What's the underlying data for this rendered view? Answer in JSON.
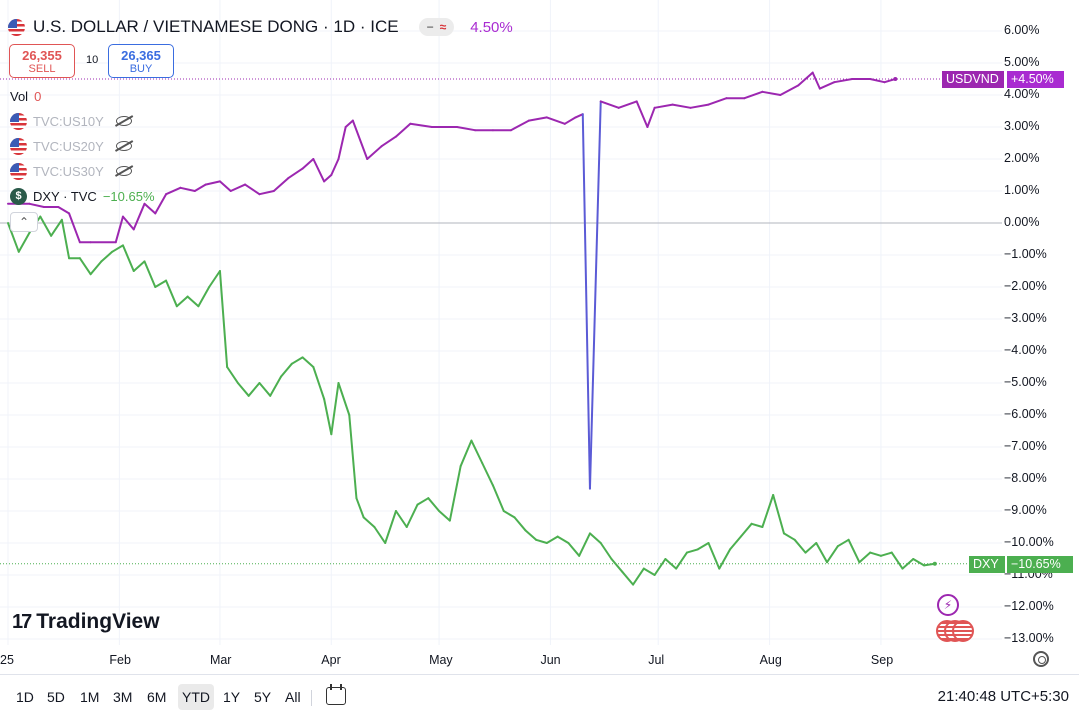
{
  "header": {
    "symbol_title": "U.S. DOLLAR / VIETNAMESE DONG · 1D · ICE",
    "change_pct": "4.50%",
    "icons": [
      "us-flag-icon",
      "toggle-pill-icon"
    ]
  },
  "trade": {
    "sell_price": "26,355",
    "sell_label": "SELL",
    "spread": "10",
    "buy_price": "26,365",
    "buy_label": "BUY"
  },
  "legend": {
    "vol_label": "Vol",
    "vol_value": "0",
    "comparisons": [
      "TVC:US10Y",
      "TVC:US20Y",
      "TVC:US30Y"
    ],
    "dxy_name": "DXY · TVC",
    "dxy_change": "−10.65%",
    "dxy_icon_glyph": "$",
    "collapse_glyph": "⌃"
  },
  "axis_tags": {
    "usdvnd_name": "USDVND",
    "usdvnd_value": "+4.50%",
    "dxy_name": "DXY",
    "dxy_value": "−10.65%"
  },
  "colors": {
    "usdvnd": "#9c27b0",
    "dxy": "#4caf50",
    "spike": "#5b5bd6"
  },
  "branding": {
    "logo_text": "TradingView"
  },
  "bottom_bar": {
    "ranges": [
      "1D",
      "5D",
      "1M",
      "3M",
      "6M",
      "YTD",
      "1Y",
      "5Y",
      "All"
    ],
    "active_range": "YTD",
    "clock": "21:40:48 UTC+5:30"
  },
  "chart_data": {
    "type": "line",
    "y_unit": "percent change",
    "ylim": [
      -13.5,
      6.5
    ],
    "y_ticks": [
      "6.00%",
      "5.00%",
      "4.00%",
      "3.00%",
      "2.00%",
      "1.00%",
      "0.00%",
      "−1.00%",
      "−2.00%",
      "−3.00%",
      "−4.00%",
      "−5.00%",
      "−6.00%",
      "−7.00%",
      "−8.00%",
      "−9.00%",
      "−10.00%",
      "−11.00%",
      "−12.00%",
      "−13.00%"
    ],
    "x_ticks": [
      "25",
      "Feb",
      "Mar",
      "Apr",
      "May",
      "Jun",
      "Jul",
      "Aug",
      "Sep"
    ],
    "x_range_days": [
      0,
      260
    ],
    "x_tick_days": [
      0,
      31,
      59,
      90,
      120,
      151,
      181,
      212,
      243
    ],
    "grid": true,
    "zero_line": true,
    "series": [
      {
        "name": "USDVND",
        "points": [
          [
            0,
            0.6
          ],
          [
            6,
            0.6
          ],
          [
            10,
            0.5
          ],
          [
            14,
            0.5
          ],
          [
            17,
            0.3
          ],
          [
            20,
            -0.6
          ],
          [
            23,
            -0.6
          ],
          [
            30,
            -0.6
          ],
          [
            32,
            0.2
          ],
          [
            35,
            -0.2
          ],
          [
            38,
            0.6
          ],
          [
            41,
            0.3
          ],
          [
            44,
            0.9
          ],
          [
            48,
            1.1
          ],
          [
            52,
            1.0
          ],
          [
            55,
            1.2
          ],
          [
            59,
            1.3
          ],
          [
            62,
            1.0
          ],
          [
            66,
            1.2
          ],
          [
            70,
            0.9
          ],
          [
            74,
            1.0
          ],
          [
            78,
            1.4
          ],
          [
            82,
            1.7
          ],
          [
            85,
            2.0
          ],
          [
            88,
            1.3
          ],
          [
            90,
            1.5
          ],
          [
            92,
            2.0
          ],
          [
            94,
            3.0
          ],
          [
            96,
            3.2
          ],
          [
            100,
            2.0
          ],
          [
            104,
            2.4
          ],
          [
            108,
            2.7
          ],
          [
            112,
            3.1
          ],
          [
            118,
            3.0
          ],
          [
            125,
            3.0
          ],
          [
            130,
            2.9
          ],
          [
            135,
            2.9
          ],
          [
            140,
            2.9
          ],
          [
            145,
            3.2
          ],
          [
            150,
            3.3
          ],
          [
            155,
            3.1
          ],
          [
            158,
            3.3
          ],
          [
            160,
            3.4
          ],
          [
            162,
            -8.3
          ],
          [
            165,
            3.8
          ],
          [
            170,
            3.6
          ],
          [
            175,
            3.8
          ],
          [
            178,
            3.0
          ],
          [
            180,
            3.6
          ],
          [
            185,
            3.7
          ],
          [
            190,
            3.6
          ],
          [
            195,
            3.7
          ],
          [
            200,
            3.9
          ],
          [
            205,
            3.9
          ],
          [
            210,
            4.1
          ],
          [
            215,
            4.0
          ],
          [
            220,
            4.3
          ],
          [
            224,
            4.7
          ],
          [
            226,
            4.2
          ],
          [
            230,
            4.4
          ],
          [
            235,
            4.5
          ],
          [
            240,
            4.5
          ],
          [
            244,
            4.4
          ],
          [
            247,
            4.5
          ]
        ]
      },
      {
        "name": "DXY",
        "points": [
          [
            0,
            0.0
          ],
          [
            3,
            -0.9
          ],
          [
            6,
            -0.3
          ],
          [
            9,
            0.2
          ],
          [
            12,
            -0.4
          ],
          [
            15,
            0.1
          ],
          [
            17,
            -1.1
          ],
          [
            20,
            -1.1
          ],
          [
            23,
            -1.6
          ],
          [
            26,
            -1.2
          ],
          [
            29,
            -0.9
          ],
          [
            32,
            -0.7
          ],
          [
            35,
            -1.5
          ],
          [
            38,
            -1.2
          ],
          [
            41,
            -2.0
          ],
          [
            44,
            -1.8
          ],
          [
            47,
            -2.6
          ],
          [
            50,
            -2.3
          ],
          [
            53,
            -2.6
          ],
          [
            56,
            -2.0
          ],
          [
            59,
            -1.5
          ],
          [
            61,
            -4.5
          ],
          [
            64,
            -5.0
          ],
          [
            67,
            -5.4
          ],
          [
            70,
            -5.0
          ],
          [
            73,
            -5.4
          ],
          [
            76,
            -4.8
          ],
          [
            79,
            -4.4
          ],
          [
            82,
            -4.2
          ],
          [
            85,
            -4.5
          ],
          [
            88,
            -5.5
          ],
          [
            90,
            -6.6
          ],
          [
            92,
            -5.0
          ],
          [
            95,
            -6.0
          ],
          [
            97,
            -8.6
          ],
          [
            99,
            -9.2
          ],
          [
            102,
            -9.5
          ],
          [
            105,
            -10.0
          ],
          [
            108,
            -9.0
          ],
          [
            111,
            -9.5
          ],
          [
            114,
            -8.8
          ],
          [
            117,
            -8.6
          ],
          [
            120,
            -9.0
          ],
          [
            123,
            -9.3
          ],
          [
            126,
            -7.6
          ],
          [
            129,
            -6.8
          ],
          [
            132,
            -7.5
          ],
          [
            135,
            -8.2
          ],
          [
            138,
            -9.0
          ],
          [
            141,
            -9.2
          ],
          [
            144,
            -9.6
          ],
          [
            147,
            -9.9
          ],
          [
            150,
            -10.0
          ],
          [
            153,
            -9.8
          ],
          [
            156,
            -10.0
          ],
          [
            159,
            -10.4
          ],
          [
            162,
            -9.7
          ],
          [
            165,
            -10.0
          ],
          [
            168,
            -10.5
          ],
          [
            171,
            -10.9
          ],
          [
            174,
            -11.3
          ],
          [
            177,
            -10.8
          ],
          [
            180,
            -11.0
          ],
          [
            183,
            -10.5
          ],
          [
            186,
            -10.8
          ],
          [
            189,
            -10.3
          ],
          [
            192,
            -10.2
          ],
          [
            195,
            -10.0
          ],
          [
            198,
            -10.8
          ],
          [
            201,
            -10.2
          ],
          [
            204,
            -9.8
          ],
          [
            207,
            -9.4
          ],
          [
            210,
            -9.5
          ],
          [
            213,
            -8.5
          ],
          [
            216,
            -9.7
          ],
          [
            219,
            -9.9
          ],
          [
            222,
            -10.3
          ],
          [
            225,
            -10.0
          ],
          [
            228,
            -10.6
          ],
          [
            231,
            -10.1
          ],
          [
            234,
            -9.9
          ],
          [
            237,
            -10.6
          ],
          [
            240,
            -10.3
          ],
          [
            243,
            -10.4
          ],
          [
            246,
            -10.3
          ],
          [
            249,
            -10.8
          ],
          [
            252,
            -10.5
          ],
          [
            255,
            -10.7
          ],
          [
            258,
            -10.65
          ]
        ]
      }
    ]
  }
}
